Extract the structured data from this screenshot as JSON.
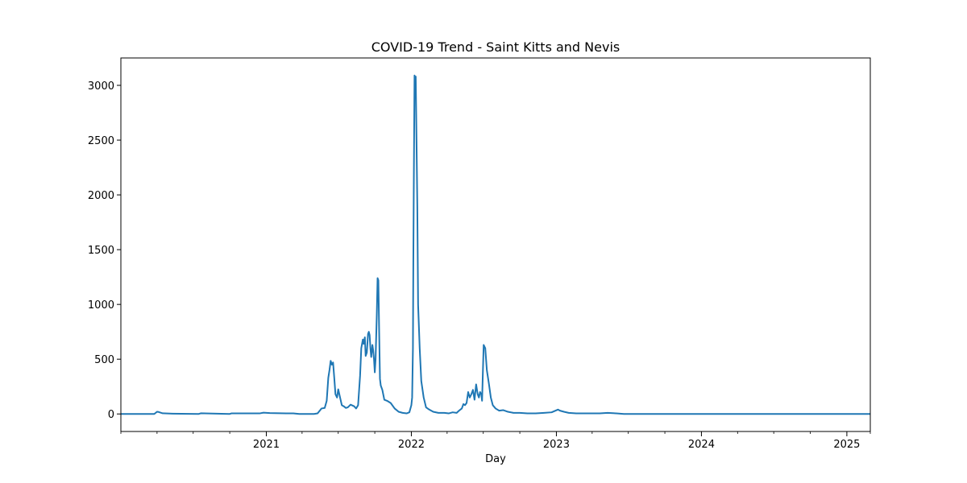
{
  "chart_data": {
    "type": "line",
    "title": "COVID-19 Trend - Saint Kitts and Nevis",
    "xlabel": "Day",
    "ylabel": "",
    "x_range": [
      "2020-01-01",
      "2025-03-01"
    ],
    "ylim": [
      -160,
      3250
    ],
    "x_ticks": [
      {
        "date": "2021-01-01",
        "label": "2021"
      },
      {
        "date": "2022-01-01",
        "label": "2022"
      },
      {
        "date": "2023-01-01",
        "label": "2023"
      },
      {
        "date": "2024-01-01",
        "label": "2024"
      },
      {
        "date": "2025-01-01",
        "label": "2025"
      }
    ],
    "x_minor_ticks": [
      "2020-01-01",
      "2020-04-01",
      "2020-07-01",
      "2020-10-01",
      "2021-04-01",
      "2021-07-01",
      "2021-10-01",
      "2022-04-01",
      "2022-07-01",
      "2022-10-01",
      "2023-04-01",
      "2023-07-01",
      "2023-10-01",
      "2024-04-01",
      "2024-07-01",
      "2024-10-01",
      "2025-03-01"
    ],
    "y_ticks": [
      0,
      500,
      1000,
      1500,
      2000,
      2500,
      3000
    ],
    "grid": false,
    "color": "#1f77b4",
    "series": [
      {
        "x": [
          "2020-01-01",
          "2020-03-25",
          "2020-04-01",
          "2020-04-05",
          "2020-04-15",
          "2020-05-10",
          "2020-07-15",
          "2020-07-20",
          "2020-10-01",
          "2020-10-05",
          "2020-12-15",
          "2020-12-25",
          "2021-01-10",
          "2021-02-20",
          "2021-03-10",
          "2021-03-25",
          "2021-04-10",
          "2021-05-01",
          "2021-05-10",
          "2021-05-20",
          "2021-05-28",
          "2021-06-02",
          "2021-06-06",
          "2021-06-09",
          "2021-06-12",
          "2021-06-15",
          "2021-06-18",
          "2021-06-21",
          "2021-06-24",
          "2021-06-28",
          "2021-07-01",
          "2021-07-05",
          "2021-07-10",
          "2021-07-15",
          "2021-07-20",
          "2021-07-25",
          "2021-08-01",
          "2021-08-10",
          "2021-08-15",
          "2021-08-20",
          "2021-08-25",
          "2021-08-28",
          "2021-09-01",
          "2021-09-03",
          "2021-09-06",
          "2021-09-08",
          "2021-09-11",
          "2021-09-14",
          "2021-09-16",
          "2021-09-18",
          "2021-09-20",
          "2021-09-22",
          "2021-09-25",
          "2021-09-27",
          "2021-09-29",
          "2021-10-01",
          "2021-10-03",
          "2021-10-06",
          "2021-10-08",
          "2021-10-10",
          "2021-10-12",
          "2021-10-14",
          "2021-10-16",
          "2021-10-20",
          "2021-10-25",
          "2021-11-01",
          "2021-11-10",
          "2021-11-20",
          "2021-11-30",
          "2021-12-10",
          "2021-12-20",
          "2021-12-27",
          "2022-01-01",
          "2022-01-03",
          "2022-01-05",
          "2022-01-06",
          "2022-01-07",
          "2022-01-09",
          "2022-01-10",
          "2022-01-11",
          "2022-01-12",
          "2022-01-14",
          "2022-01-16",
          "2022-01-18",
          "2022-01-22",
          "2022-01-26",
          "2022-02-01",
          "2022-02-07",
          "2022-02-15",
          "2022-02-25",
          "2022-03-10",
          "2022-03-25",
          "2022-04-05",
          "2022-04-15",
          "2022-04-25",
          "2022-05-01",
          "2022-05-08",
          "2022-05-12",
          "2022-05-16",
          "2022-05-20",
          "2022-05-24",
          "2022-05-28",
          "2022-06-01",
          "2022-06-05",
          "2022-06-09",
          "2022-06-13",
          "2022-06-17",
          "2022-06-20",
          "2022-06-23",
          "2022-06-26",
          "2022-06-28",
          "2022-06-30",
          "2022-07-02",
          "2022-07-06",
          "2022-07-10",
          "2022-07-15",
          "2022-07-20",
          "2022-07-25",
          "2022-08-01",
          "2022-08-10",
          "2022-08-20",
          "2022-09-01",
          "2022-09-15",
          "2022-10-01",
          "2022-10-20",
          "2022-11-10",
          "2022-12-01",
          "2022-12-20",
          "2023-01-05",
          "2023-01-10",
          "2023-01-20",
          "2023-02-01",
          "2023-02-20",
          "2023-03-10",
          "2023-04-01",
          "2023-04-20",
          "2023-05-10",
          "2023-06-01",
          "2023-06-20",
          "2023-07-01",
          "2023-08-01",
          "2024-01-01",
          "2025-03-01"
        ],
        "y": [
          0,
          0,
          20,
          18,
          6,
          3,
          0,
          6,
          0,
          5,
          5,
          12,
          8,
          5,
          5,
          0,
          0,
          0,
          5,
          50,
          55,
          120,
          330,
          400,
          485,
          450,
          470,
          330,
          180,
          150,
          225,
          160,
          80,
          70,
          55,
          60,
          85,
          70,
          50,
          80,
          350,
          600,
          680,
          640,
          700,
          530,
          560,
          730,
          750,
          720,
          600,
          520,
          630,
          580,
          500,
          380,
          500,
          900,
          1240,
          1220,
          750,
          320,
          260,
          220,
          130,
          120,
          100,
          50,
          20,
          10,
          5,
          15,
          80,
          150,
          600,
          1400,
          2000,
          3090,
          3050,
          2900,
          3080,
          2500,
          1900,
          1000,
          600,
          300,
          150,
          60,
          40,
          20,
          10,
          10,
          5,
          15,
          10,
          30,
          50,
          90,
          80,
          100,
          200,
          150,
          180,
          220,
          130,
          270,
          180,
          150,
          200,
          180,
          120,
          380,
          630,
          600,
          400,
          280,
          150,
          80,
          50,
          30,
          35,
          20,
          10,
          10,
          5,
          5,
          10,
          15,
          40,
          30,
          20,
          10,
          5,
          5,
          5,
          5,
          10,
          5,
          0,
          0,
          0,
          0,
          0
        ]
      }
    ]
  }
}
